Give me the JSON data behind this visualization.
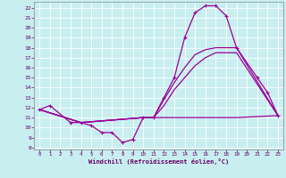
{
  "xlabel": "Windchill (Refroidissement éolien,°C)",
  "bg_color": "#c8eef0",
  "line_color": "#990099",
  "grid_color": "#ffffff",
  "x_ticks": [
    0,
    1,
    2,
    3,
    4,
    5,
    6,
    7,
    8,
    9,
    10,
    11,
    12,
    13,
    14,
    15,
    16,
    17,
    18,
    19,
    20,
    21,
    22,
    23
  ],
  "y_ticks": [
    8,
    9,
    10,
    11,
    12,
    13,
    14,
    15,
    16,
    17,
    18,
    19,
    20,
    21,
    22
  ],
  "ylim": [
    7.8,
    22.6
  ],
  "xlim": [
    -0.5,
    23.5
  ],
  "series": [
    {
      "x": [
        0,
        1,
        3,
        4,
        5,
        6,
        7,
        8,
        9,
        10,
        11,
        12,
        13,
        14,
        15,
        16,
        17,
        18,
        19,
        21,
        22,
        23
      ],
      "y": [
        11.8,
        12.2,
        10.5,
        10.5,
        10.2,
        9.5,
        9.5,
        8.5,
        8.8,
        11.0,
        11.0,
        13.0,
        15.0,
        19.0,
        21.5,
        22.2,
        22.2,
        21.2,
        18.0,
        15.0,
        13.5,
        11.2
      ],
      "markers": true
    },
    {
      "x": [
        0,
        4,
        10,
        11,
        12,
        13,
        14,
        15,
        16,
        17,
        18,
        19,
        23
      ],
      "y": [
        11.8,
        10.5,
        11.0,
        11.0,
        12.8,
        14.5,
        16.0,
        17.3,
        17.8,
        18.0,
        18.0,
        18.0,
        11.2
      ],
      "markers": false
    },
    {
      "x": [
        0,
        4,
        10,
        11,
        12,
        13,
        14,
        15,
        16,
        17,
        18,
        19,
        23
      ],
      "y": [
        11.8,
        10.5,
        11.0,
        11.0,
        12.2,
        13.8,
        15.0,
        16.2,
        17.0,
        17.5,
        17.5,
        17.5,
        11.2
      ],
      "markers": false
    },
    {
      "x": [
        0,
        4,
        10,
        11,
        12,
        13,
        14,
        15,
        16,
        17,
        18,
        19,
        23
      ],
      "y": [
        11.8,
        10.5,
        11.0,
        11.0,
        11.0,
        11.0,
        11.0,
        11.0,
        11.0,
        11.0,
        11.0,
        11.0,
        11.2
      ],
      "markers": false
    }
  ]
}
